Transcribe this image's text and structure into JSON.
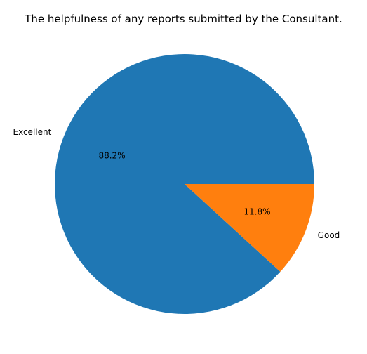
{
  "chart_data": {
    "type": "pie",
    "title": "The helpfulness of any reports submitted by the Consultant.",
    "categories": [
      "Excellent",
      "Good"
    ],
    "values": [
      88.2,
      11.8
    ],
    "value_labels": [
      "88.2%",
      "11.8%"
    ],
    "colors": [
      "#1f77b4",
      "#ff7f0e"
    ],
    "legend": false
  }
}
